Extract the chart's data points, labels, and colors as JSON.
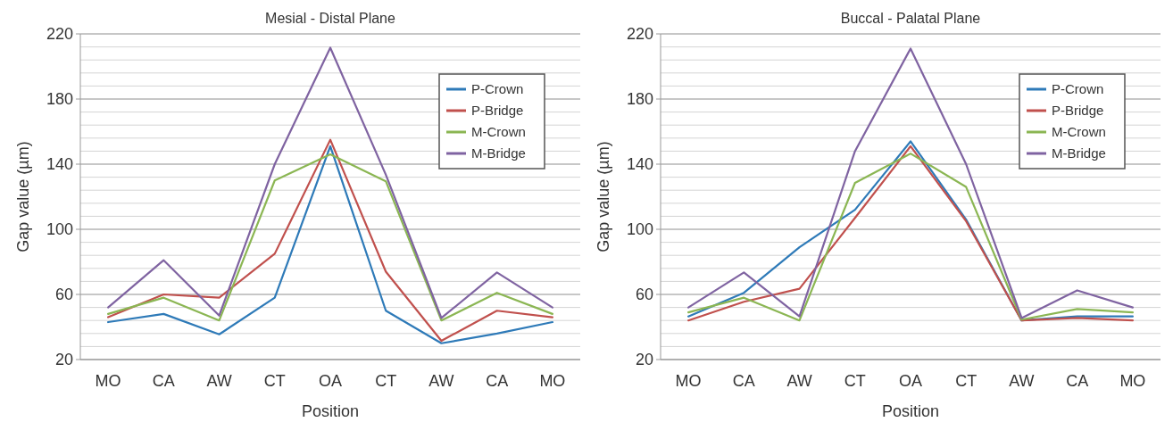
{
  "chart_data": [
    {
      "type": "line",
      "title": "Mesial - Distal Plane",
      "xlabel": "Position",
      "ylabel": "Gap value (µm)",
      "categories": [
        "MO",
        "CA",
        "AW",
        "CT",
        "OA",
        "CT",
        "AW",
        "CA",
        "MO"
      ],
      "ylim": [
        20,
        220
      ],
      "yticks": [
        20,
        {
          "value": 28,
          "label": null
        },
        {
          "value": 36,
          "label": null
        },
        {
          "value": 44,
          "label": null
        },
        {
          "value": 52,
          "label": null
        },
        60,
        {
          "value": 68,
          "label": null
        },
        {
          "value": 76,
          "label": null
        },
        {
          "value": 84,
          "label": null
        },
        {
          "value": 92,
          "label": null
        },
        100,
        {
          "value": 108,
          "label": null
        },
        {
          "value": 116,
          "label": null
        },
        {
          "value": 124,
          "label": null
        },
        {
          "value": 132,
          "label": null
        },
        140,
        {
          "value": 148,
          "label": null
        },
        {
          "value": 156,
          "label": null
        },
        {
          "value": 164,
          "label": null
        },
        {
          "value": 172,
          "label": null
        },
        180,
        {
          "value": 188,
          "label": null
        },
        {
          "value": 196,
          "label": null
        },
        {
          "value": 204,
          "label": null
        },
        {
          "value": 212,
          "label": null
        },
        220
      ],
      "grid": "y",
      "legend": "top right",
      "marker": "none",
      "series": [
        {
          "name": "P-Crown",
          "color": "#2e7ab8",
          "values": [
            43,
            48,
            35.5,
            58,
            151,
            50,
            30,
            36,
            43
          ]
        },
        {
          "name": "P-Bridge",
          "color": "#c0504d",
          "values": [
            46,
            60,
            58,
            85,
            155,
            74,
            31.5,
            50,
            46
          ]
        },
        {
          "name": "M-Crown",
          "color": "#8bb653",
          "values": [
            48,
            58,
            44,
            130,
            146,
            129.5,
            44,
            61,
            48
          ]
        },
        {
          "name": "M-Bridge",
          "color": "#7f63a1",
          "values": [
            52,
            81,
            47,
            140,
            211.5,
            133.5,
            45.5,
            73.5,
            52
          ]
        }
      ]
    },
    {
      "type": "line",
      "title": "Buccal - Palatal Plane",
      "xlabel": "Position",
      "ylabel": "Gap value (µm)",
      "categories": [
        "MO",
        "CA",
        "AW",
        "CT",
        "OA",
        "CT",
        "AW",
        "CA",
        "MO"
      ],
      "ylim": [
        20,
        220
      ],
      "yticks": [
        20,
        {
          "value": 28,
          "label": null
        },
        {
          "value": 36,
          "label": null
        },
        {
          "value": 44,
          "label": null
        },
        {
          "value": 52,
          "label": null
        },
        60,
        {
          "value": 68,
          "label": null
        },
        {
          "value": 76,
          "label": null
        },
        {
          "value": 84,
          "label": null
        },
        {
          "value": 92,
          "label": null
        },
        100,
        {
          "value": 108,
          "label": null
        },
        {
          "value": 116,
          "label": null
        },
        {
          "value": 124,
          "label": null
        },
        {
          "value": 132,
          "label": null
        },
        140,
        {
          "value": 148,
          "label": null
        },
        {
          "value": 156,
          "label": null
        },
        {
          "value": 164,
          "label": null
        },
        {
          "value": 172,
          "label": null
        },
        180,
        {
          "value": 188,
          "label": null
        },
        {
          "value": 196,
          "label": null
        },
        {
          "value": 204,
          "label": null
        },
        {
          "value": 212,
          "label": null
        },
        220
      ],
      "grid": "y",
      "legend": "top right",
      "marker": "none",
      "series": [
        {
          "name": "P-Crown",
          "color": "#2e7ab8",
          "values": [
            46.5,
            61,
            89,
            112,
            154,
            106,
            44,
            46.5,
            46.5
          ]
        },
        {
          "name": "P-Bridge",
          "color": "#c0504d",
          "values": [
            44,
            55.5,
            63.5,
            107,
            151,
            105,
            44,
            45.5,
            44
          ]
        },
        {
          "name": "M-Crown",
          "color": "#8bb653",
          "values": [
            49,
            58,
            44,
            128.5,
            146.5,
            126,
            44.5,
            51,
            49
          ]
        },
        {
          "name": "M-Bridge",
          "color": "#7f63a1",
          "values": [
            52,
            73.5,
            46.5,
            148,
            211,
            140,
            45.5,
            62.5,
            52
          ]
        }
      ]
    }
  ]
}
